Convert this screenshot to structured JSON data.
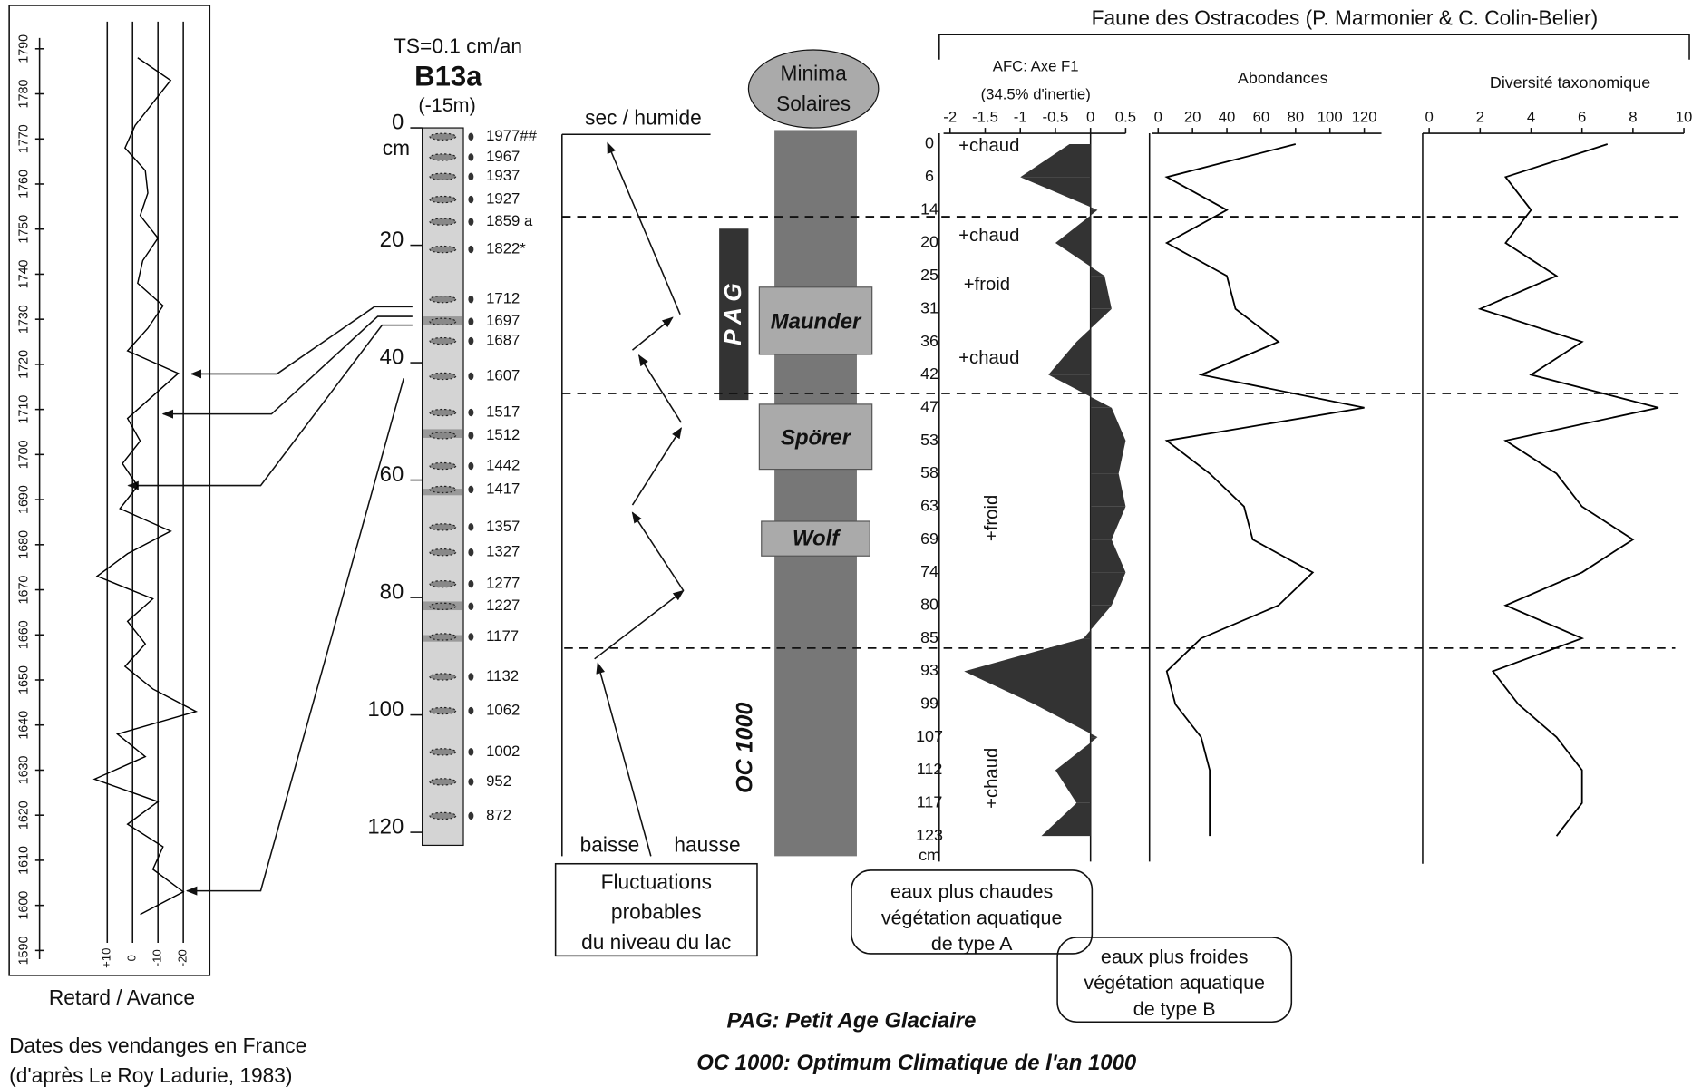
{
  "header": {
    "title": "Faune des Ostracodes (P. Marmonier & C. Colin-Belier)"
  },
  "notes": {
    "warm": [
      "eaux plus chaudes",
      "végétation aquatique",
      "de type A"
    ],
    "cold": [
      "eaux plus froides",
      "végétation aquatique",
      "de type B"
    ]
  },
  "chart_data": [
    {
      "type": "line",
      "orientation": "vertical",
      "xlabel": "Retard / Avance",
      "caption": [
        "Dates des vendanges en France",
        "(d'après Le Roy Ladurie, 1983)"
      ],
      "color": "#000000",
      "x": [
        1598,
        1603,
        1608,
        1613,
        1618,
        1623,
        1628,
        1633,
        1638,
        1643,
        1648,
        1653,
        1658,
        1663,
        1668,
        1673,
        1678,
        1683,
        1688,
        1693,
        1698,
        1703,
        1708,
        1713,
        1718,
        1723,
        1728,
        1733,
        1738,
        1743,
        1748,
        1753,
        1758,
        1763,
        1768,
        1773,
        1778,
        1783,
        1788
      ],
      "values": [
        -3,
        -20,
        -8,
        -12,
        2,
        -10,
        15,
        -5,
        6,
        -25,
        -8,
        3,
        -5,
        2,
        -8,
        14,
        2,
        -15,
        5,
        -2,
        4,
        -3,
        2,
        -8,
        -18,
        2,
        -6,
        -12,
        -2,
        -4,
        -10,
        -3,
        -6,
        -5,
        3,
        -1,
        -8,
        -15,
        -2
      ],
      "xlim": [
        1590,
        1790
      ],
      "xticks": [
        1590,
        1600,
        1610,
        1620,
        1630,
        1640,
        1650,
        1660,
        1670,
        1680,
        1690,
        1700,
        1710,
        1720,
        1730,
        1740,
        1750,
        1760,
        1770,
        1780,
        1790
      ],
      "ylim": [
        35,
        -30
      ],
      "yticks": [
        {
          "value": 10,
          "label": "+10"
        },
        0,
        -10,
        -20
      ],
      "grid": true
    },
    {
      "type": "core",
      "subtitle": "TS=0.1 cm/an",
      "title": "B13a",
      "note": "(-15m)",
      "unit": "cm",
      "ylim": [
        0,
        120
      ],
      "yticks": [
        0,
        20,
        40,
        60,
        80,
        100,
        120
      ],
      "labels": [
        "1977##",
        "1967",
        "1937",
        "1927",
        "1859 a",
        "1822*",
        "1712",
        "1697",
        "1687",
        "1607",
        "1517",
        "1512",
        "1442",
        "1417",
        "1357",
        "1327",
        "1277",
        "1227",
        "1177",
        "1132",
        "1062",
        "1002",
        "952",
        "872"
      ],
      "depths": [
        1.5,
        5,
        8.3,
        12.2,
        16,
        20.7,
        29.2,
        33,
        36.3,
        42.3,
        48.5,
        52.4,
        57.6,
        61.6,
        68,
        72.3,
        77.7,
        81.5,
        86.7,
        93.5,
        99.3,
        106.3,
        111.4,
        117.2
      ]
    },
    {
      "type": "scheme",
      "title": "sec / humide",
      "labels": [
        "baisse",
        "hausse"
      ],
      "caption": [
        "Fluctuations",
        "probables",
        "du niveau du lac"
      ]
    },
    {
      "type": "timeline",
      "title": [
        "Minima",
        "Solaires"
      ],
      "events": [
        "Maunder",
        "Spörer",
        "Wolf"
      ],
      "pag": "P A G",
      "oc": "OC 1000",
      "legend": [
        "PAG: Petit Age Glaciaire",
        "OC 1000: Optimum Climatique de l'an 1000"
      ]
    },
    {
      "type": "area",
      "orientation": "vertical",
      "title": [
        "AFC: Axe F1",
        "(34.5% d'inertie)"
      ],
      "unit": "cm",
      "categories": [
        "0",
        "6",
        "14",
        "20",
        "25",
        "31",
        "36",
        "42",
        "47",
        "53",
        "58",
        "63",
        "69",
        "74",
        "80",
        "85",
        "93",
        "99",
        "107",
        "112",
        "117",
        "123"
      ],
      "values": [
        -0.3,
        -1.0,
        0.1,
        -0.5,
        0.2,
        0.3,
        -0.2,
        -0.6,
        0.3,
        0.5,
        0.4,
        0.5,
        0.3,
        0.5,
        0.3,
        -0.1,
        -1.8,
        -0.8,
        0.1,
        -0.5,
        -0.2,
        -0.7
      ],
      "color": "#333333",
      "ylim": [
        -2,
        0.5
      ],
      "yticks": [
        -2,
        -1.5,
        -1,
        -0.5,
        0,
        0.5
      ],
      "annotations": [
        "+chaud",
        "+chaud",
        "+froid",
        "+chaud",
        "+froid",
        "+chaud"
      ]
    },
    {
      "type": "line",
      "orientation": "vertical",
      "title": "Abondances",
      "color": "#000000",
      "values": [
        80,
        5,
        40,
        5,
        40,
        45,
        70,
        25,
        120,
        5,
        30,
        50,
        55,
        90,
        70,
        25,
        5,
        10,
        25,
        30,
        30,
        30
      ],
      "ylim": [
        0,
        130
      ],
      "yticks": [
        0,
        20,
        40,
        60,
        80,
        100,
        120
      ]
    },
    {
      "type": "line",
      "orientation": "vertical",
      "title": "Diversité taxonomique",
      "color": "#000000",
      "values": [
        7,
        3,
        4,
        3,
        5,
        2,
        6,
        4,
        9,
        3,
        5,
        6,
        8,
        6,
        3,
        6,
        2.5,
        3.5,
        5,
        6,
        6,
        5
      ],
      "ylim": [
        0,
        10
      ],
      "yticks": [
        0,
        2,
        4,
        6,
        8,
        10
      ]
    }
  ]
}
